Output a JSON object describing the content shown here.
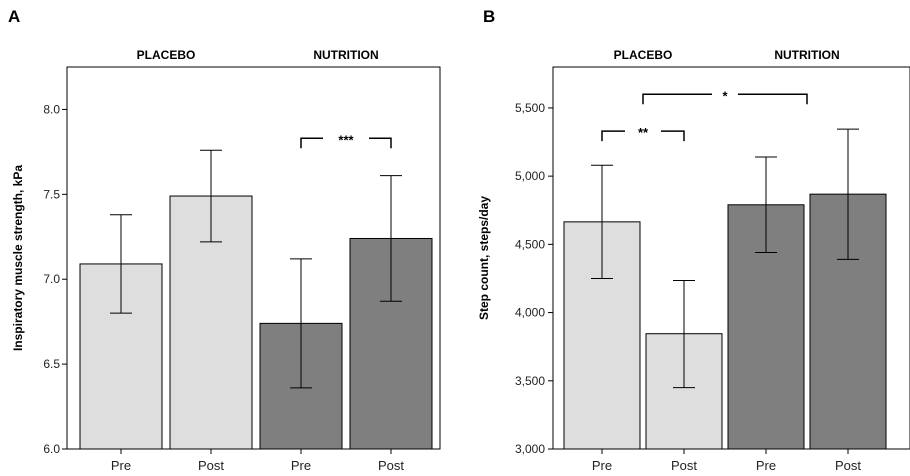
{
  "chart_data": [
    {
      "type": "bar",
      "panel": "A",
      "groups": [
        "PLACEBO",
        "NUTRITION"
      ],
      "categories": [
        "Pre",
        "Post",
        "Pre",
        "Post"
      ],
      "values": [
        7.09,
        7.49,
        6.74,
        7.24
      ],
      "error_low": [
        6.8,
        7.22,
        6.36,
        6.87
      ],
      "error_high": [
        7.38,
        7.76,
        7.12,
        7.61
      ],
      "bar_colors": [
        "#dedede",
        "#dedede",
        "#7f7f7f",
        "#7f7f7f"
      ],
      "ylabel": "Inspiratory muscle strength, kPa",
      "ylim": [
        6.0,
        8.25
      ],
      "yticks": [
        "6.0",
        "6.5",
        "7.0",
        "7.5",
        "8.0"
      ],
      "ytick_values": [
        6.0,
        6.5,
        7.0,
        7.5,
        8.0
      ],
      "significance": [
        {
          "from": 2,
          "to": 3,
          "label": "***",
          "y": 7.83
        }
      ]
    },
    {
      "type": "bar",
      "panel": "B",
      "groups": [
        "PLACEBO",
        "NUTRITION"
      ],
      "categories": [
        "Pre",
        "Post",
        "Pre",
        "Post"
      ],
      "values": [
        4665,
        3845,
        4790,
        4868
      ],
      "error_low": [
        4250,
        3450,
        4440,
        4390
      ],
      "error_high": [
        5080,
        4235,
        5140,
        5345
      ],
      "bar_colors": [
        "#dedede",
        "#dedede",
        "#7f7f7f",
        "#7f7f7f"
      ],
      "ylabel": "Step count, steps/day",
      "ylim": [
        3000,
        5800
      ],
      "yticks": [
        "3,000",
        "3,500",
        "4,000",
        "4,500",
        "5,000",
        "5,500"
      ],
      "ytick_values": [
        3000,
        3500,
        4000,
        4500,
        5000,
        5500
      ],
      "significance": [
        {
          "from": 0,
          "to": 1,
          "label": "**",
          "y": 5330
        },
        {
          "from": 0.5,
          "to": 2.5,
          "label": "*",
          "y": 5600
        }
      ]
    }
  ]
}
